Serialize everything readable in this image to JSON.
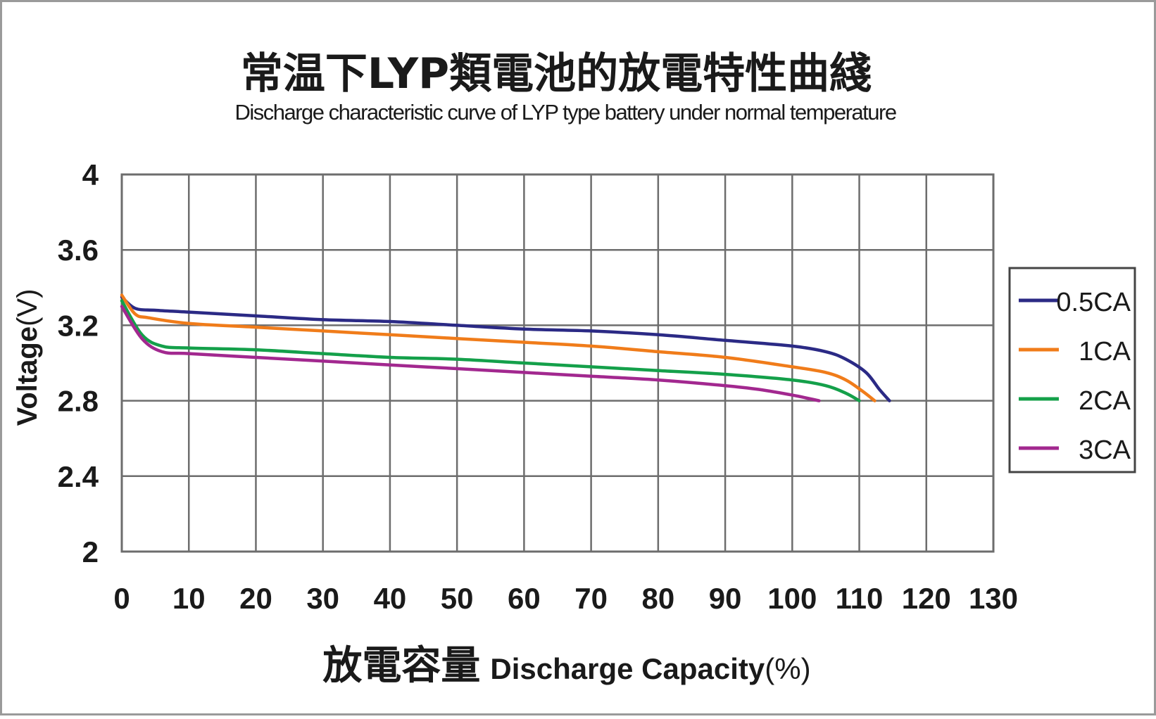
{
  "chart_data": {
    "type": "line",
    "title": "常温下LYP類電池的放電特性曲綫",
    "subtitle": "Discharge characteristic curve of LYP  type battery under normal temperature",
    "xlabel_zh": "放電容量",
    "xlabel": "Discharge Capacity",
    "xlabel_unit": "(%)",
    "ylabel": "Voltage",
    "ylabel_unit": "(V)",
    "xlim": [
      0,
      130
    ],
    "ylim": [
      2,
      4
    ],
    "x_ticks": [
      0,
      10,
      20,
      30,
      40,
      50,
      60,
      70,
      80,
      90,
      100,
      110,
      120,
      130
    ],
    "y_ticks": [
      2,
      2.4,
      2.8,
      3.2,
      3.6,
      4
    ],
    "y_tick_labels": [
      "2",
      "2.4",
      "2.8",
      "3.2",
      "3.6",
      "4"
    ],
    "grid": true,
    "legend_position": "right",
    "series": [
      {
        "name": "0.5CA",
        "color": "#2b2a85",
        "x": [
          0,
          2,
          5,
          10,
          20,
          30,
          40,
          50,
          60,
          70,
          80,
          90,
          100,
          105,
          108,
          111,
          113,
          114.5
        ],
        "y": [
          3.35,
          3.29,
          3.28,
          3.27,
          3.25,
          3.23,
          3.22,
          3.2,
          3.18,
          3.17,
          3.15,
          3.12,
          3.09,
          3.06,
          3.02,
          2.95,
          2.86,
          2.8
        ]
      },
      {
        "name": "1CA",
        "color": "#f07c1a",
        "x": [
          0,
          2,
          4,
          10,
          20,
          30,
          40,
          50,
          60,
          70,
          80,
          90,
          100,
          105,
          108,
          110.5,
          112.3
        ],
        "y": [
          3.36,
          3.26,
          3.24,
          3.21,
          3.19,
          3.17,
          3.15,
          3.13,
          3.11,
          3.09,
          3.06,
          3.03,
          2.98,
          2.95,
          2.91,
          2.85,
          2.8
        ]
      },
      {
        "name": "2CA",
        "color": "#14a04a",
        "x": [
          0,
          3,
          6,
          10,
          20,
          30,
          40,
          50,
          60,
          70,
          80,
          90,
          100,
          105,
          108,
          110
        ],
        "y": [
          3.33,
          3.15,
          3.09,
          3.08,
          3.07,
          3.05,
          3.03,
          3.02,
          3.0,
          2.98,
          2.96,
          2.94,
          2.91,
          2.88,
          2.84,
          2.8
        ]
      },
      {
        "name": "3CA",
        "color": "#a2288f",
        "x": [
          0,
          3,
          6,
          10,
          20,
          30,
          40,
          50,
          60,
          70,
          80,
          90,
          95,
          100,
          104
        ],
        "y": [
          3.3,
          3.13,
          3.06,
          3.05,
          3.03,
          3.01,
          2.99,
          2.97,
          2.95,
          2.93,
          2.91,
          2.88,
          2.86,
          2.83,
          2.8
        ]
      }
    ]
  }
}
